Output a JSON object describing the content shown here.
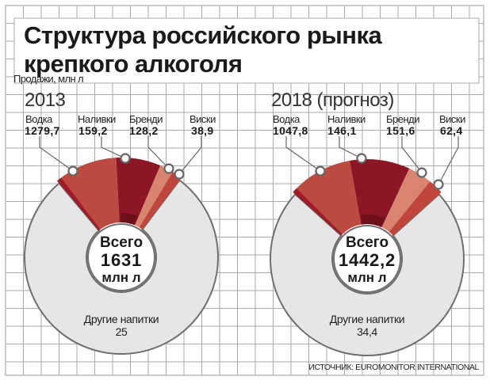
{
  "title_line1": "Структура российского рынка",
  "title_line2": "крепкого алкоголя",
  "subtitle": "Продажи, млн л",
  "source": "ИСТОЧНИК: EUROMONITOR INTERNATIONAL",
  "colors": {
    "vodka": "#bd4a40",
    "vodka_edge": "#9e1b2a",
    "nalivki": "#8c1626",
    "brendi": "#d9846f",
    "viski": "#c0463c",
    "other": "#e6e6e6",
    "grid": "#aaaaaa"
  },
  "chart_data": [
    {
      "type": "pie",
      "variant": "donut",
      "title": "2013",
      "categories": [
        "Водка",
        "Наливки",
        "Бренди",
        "Виски"
      ],
      "values": [
        "1279,7",
        "159,2",
        "128,2",
        "38,9"
      ],
      "other_label": "Другие напитки",
      "other_value": "25",
      "total_label": "Всего",
      "total_value": "1631",
      "total_unit": "млн л"
    },
    {
      "type": "pie",
      "variant": "donut",
      "title": "2018 (прогноз)",
      "categories": [
        "Водка",
        "Наливки",
        "Бренди",
        "Виски"
      ],
      "values": [
        "1047,8",
        "146,1",
        "151,6",
        "62,4"
      ],
      "other_label": "Другие напитки",
      "other_value": "34,4",
      "total_label": "Всего",
      "total_value": "1442,2",
      "total_unit": "млн л"
    }
  ]
}
